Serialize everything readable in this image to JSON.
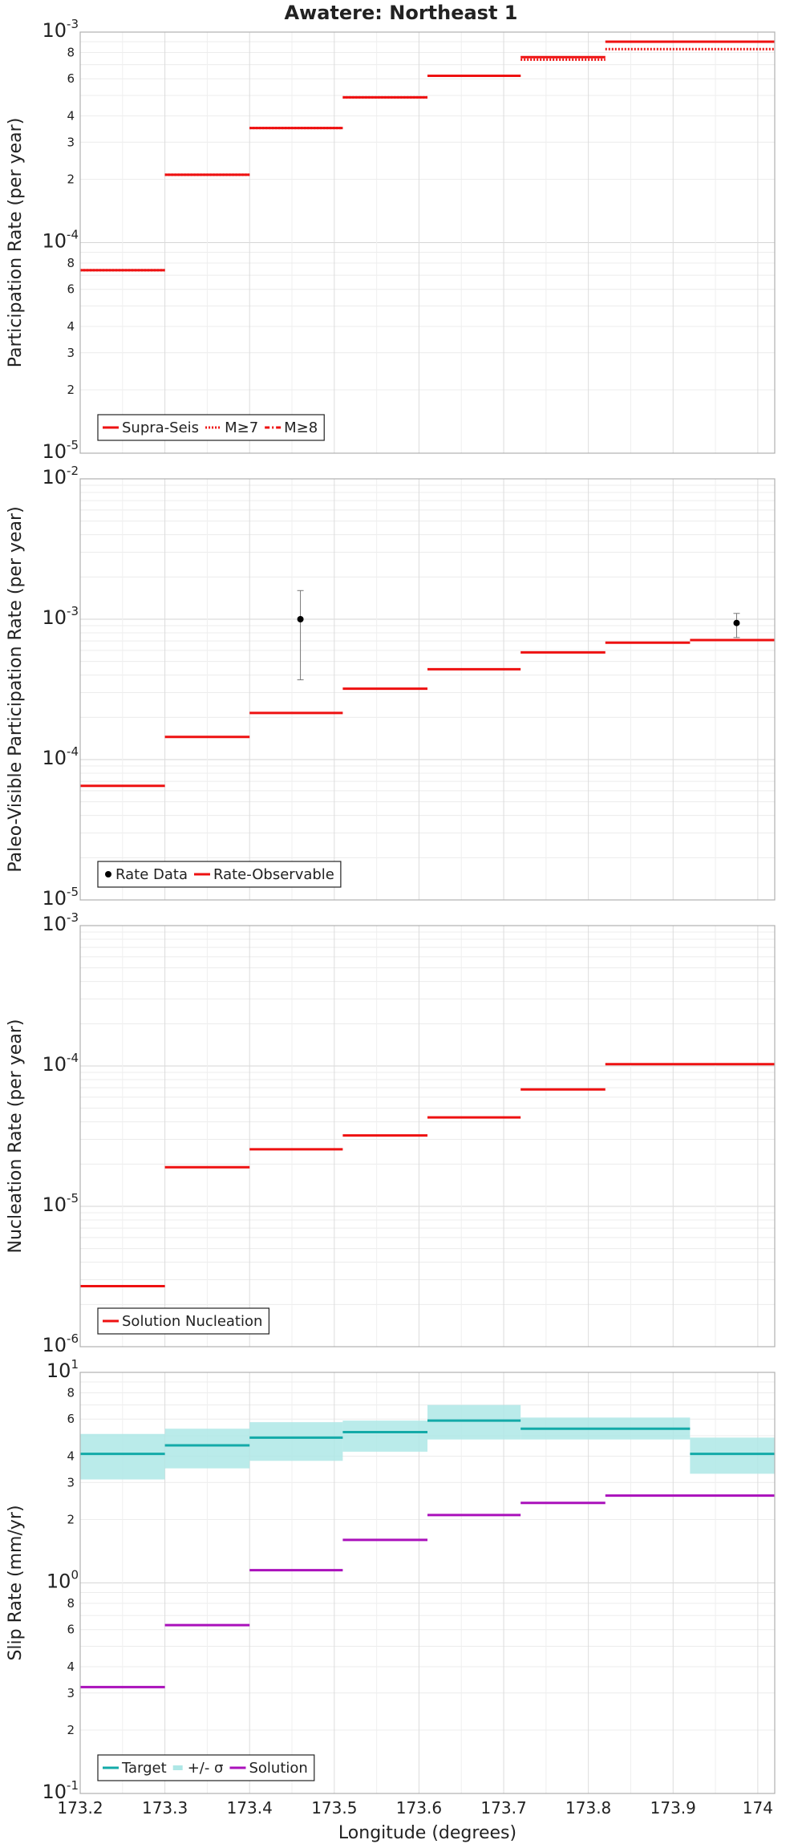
{
  "title": "Awatere: Northeast 1",
  "colors": {
    "red": "#ee1111",
    "teal": "#13aaa8",
    "teal_band": "#aee7e6",
    "magenta": "#aa11bb",
    "black": "#000000"
  },
  "chart_data": [
    {
      "type": "line",
      "title": "Awatere: Northeast 1",
      "ylabel": "Participation Rate (per year)",
      "xlabel": "",
      "y_scale": "log",
      "xlim": [
        173.2,
        174.02
      ],
      "ylim": [
        1e-05,
        0.001
      ],
      "grid": true,
      "legend_placement": "bottom-left",
      "x_tick_labels": [],
      "y_major_ticks": [
        {
          "value": 1e-05,
          "base": "10",
          "exp": "-5"
        },
        {
          "value": 0.0001,
          "base": "10",
          "exp": "-4"
        },
        {
          "value": 0.001,
          "base": "10",
          "exp": "-3"
        }
      ],
      "y_minor_labels": [
        "2",
        "3",
        "4",
        "6",
        "8"
      ],
      "legend": [
        {
          "label": "Supra-Seis",
          "style": "solid",
          "color": "#ee1111"
        },
        {
          "label": "M≥7",
          "style": "dotted",
          "color": "#ee1111"
        },
        {
          "label": "M≥8",
          "style": "dashdot",
          "color": "#ee1111"
        }
      ],
      "series": [
        {
          "name": "Supra-Seis",
          "style": "solid",
          "color": "#ee1111",
          "segments": [
            [
              173.2,
              173.3,
              7.4e-05
            ],
            [
              173.3,
              173.4,
              0.00021
            ],
            [
              173.4,
              173.51,
              0.00035
            ],
            [
              173.51,
              173.61,
              0.00049
            ],
            [
              173.61,
              173.72,
              0.00062
            ],
            [
              173.72,
              173.82,
              0.00076
            ],
            [
              173.82,
              174.02,
              0.0009
            ]
          ]
        },
        {
          "name": "M≥7",
          "style": "dotted",
          "color": "#ee1111",
          "segments": [
            [
              173.2,
              173.3,
              7.4e-05
            ],
            [
              173.3,
              173.4,
              0.00021
            ],
            [
              173.4,
              173.51,
              0.00035
            ],
            [
              173.51,
              173.61,
              0.00049
            ],
            [
              173.61,
              173.72,
              0.00062
            ],
            [
              173.72,
              173.82,
              0.00074
            ],
            [
              173.82,
              174.02,
              0.00083
            ]
          ]
        }
      ]
    },
    {
      "type": "line",
      "ylabel": "Paleo-Visible Participation Rate (per year)",
      "xlabel": "",
      "y_scale": "log",
      "xlim": [
        173.2,
        174.02
      ],
      "ylim": [
        1e-05,
        0.01
      ],
      "grid": true,
      "legend_placement": "bottom-left",
      "x_tick_labels": [],
      "y_major_ticks": [
        {
          "value": 1e-05,
          "base": "10",
          "exp": "-5"
        },
        {
          "value": 0.0001,
          "base": "10",
          "exp": "-4"
        },
        {
          "value": 0.001,
          "base": "10",
          "exp": "-3"
        },
        {
          "value": 0.01,
          "base": "10",
          "exp": "-2"
        }
      ],
      "y_minor_labels": [],
      "legend": [
        {
          "label": "Rate Data",
          "style": "point",
          "color": "#000000"
        },
        {
          "label": "Rate-Observable",
          "style": "solid",
          "color": "#ee1111"
        }
      ],
      "series": [
        {
          "name": "Rate-Observable",
          "style": "solid",
          "color": "#ee1111",
          "segments": [
            [
              173.2,
              173.3,
              6.5e-05
            ],
            [
              173.3,
              173.4,
              0.000145
            ],
            [
              173.4,
              173.51,
              0.000215
            ],
            [
              173.51,
              173.61,
              0.00032
            ],
            [
              173.61,
              173.72,
              0.00044
            ],
            [
              173.72,
              173.82,
              0.00058
            ],
            [
              173.82,
              173.92,
              0.00068
            ],
            [
              173.92,
              174.02,
              0.00071
            ]
          ]
        }
      ],
      "points": [
        {
          "x": 173.46,
          "y": 0.001,
          "low": 0.00037,
          "high": 0.0016
        },
        {
          "x": 173.975,
          "y": 0.00094,
          "low": 0.00074,
          "high": 0.0011
        }
      ]
    },
    {
      "type": "line",
      "ylabel": "Nucleation Rate (per year)",
      "xlabel": "",
      "y_scale": "log",
      "xlim": [
        173.2,
        174.02
      ],
      "ylim": [
        1e-06,
        0.001
      ],
      "grid": true,
      "legend_placement": "bottom-left",
      "x_tick_labels": [],
      "y_major_ticks": [
        {
          "value": 1e-06,
          "base": "10",
          "exp": "-6"
        },
        {
          "value": 1e-05,
          "base": "10",
          "exp": "-5"
        },
        {
          "value": 0.0001,
          "base": "10",
          "exp": "-4"
        },
        {
          "value": 0.001,
          "base": "10",
          "exp": "-3"
        }
      ],
      "y_minor_labels": [],
      "legend": [
        {
          "label": "Solution Nucleation",
          "style": "solid",
          "color": "#ee1111"
        }
      ],
      "series": [
        {
          "name": "Solution Nucleation",
          "style": "solid",
          "color": "#ee1111",
          "segments": [
            [
              173.2,
              173.3,
              2.7e-06
            ],
            [
              173.3,
              173.4,
              1.9e-05
            ],
            [
              173.4,
              173.51,
              2.55e-05
            ],
            [
              173.51,
              173.61,
              3.2e-05
            ],
            [
              173.61,
              173.72,
              4.3e-05
            ],
            [
              173.72,
              173.82,
              6.8e-05
            ],
            [
              173.82,
              174.02,
              0.000103
            ]
          ]
        }
      ]
    },
    {
      "type": "line",
      "ylabel": "Slip Rate (mm/yr)",
      "xlabel": "Longitude (degrees)",
      "y_scale": "log",
      "xlim": [
        173.2,
        174.02
      ],
      "ylim": [
        0.1,
        10
      ],
      "grid": true,
      "legend_placement": "bottom-left",
      "x_tick_labels": [
        "173.2",
        "173.3",
        "173.4",
        "173.5",
        "173.6",
        "173.7",
        "173.8",
        "173.9",
        "174"
      ],
      "y_major_ticks": [
        {
          "value": 0.1,
          "base": "10",
          "exp": "-1"
        },
        {
          "value": 1,
          "base": "10",
          "exp": "0"
        },
        {
          "value": 10,
          "base": "10",
          "exp": "1"
        }
      ],
      "y_minor_labels": [
        "2",
        "3",
        "4",
        "6",
        "8"
      ],
      "legend": [
        {
          "label": "Target",
          "style": "solid",
          "color": "#13aaa8"
        },
        {
          "label": "+/- σ",
          "style": "band",
          "color": "#aee7e6"
        },
        {
          "label": "Solution",
          "style": "solid",
          "color": "#aa11bb"
        }
      ],
      "bands": [
        {
          "name": "+/- σ",
          "color": "#aee7e6",
          "segments": [
            [
              173.2,
              173.3,
              3.1,
              5.1
            ],
            [
              173.3,
              173.4,
              3.5,
              5.4
            ],
            [
              173.4,
              173.51,
              3.8,
              5.8
            ],
            [
              173.51,
              173.61,
              4.2,
              5.9
            ],
            [
              173.61,
              173.72,
              4.8,
              7.0
            ],
            [
              173.72,
              173.92,
              4.8,
              6.1
            ],
            [
              173.92,
              174.02,
              3.3,
              4.9
            ]
          ]
        }
      ],
      "series": [
        {
          "name": "Target",
          "style": "solid",
          "color": "#13aaa8",
          "segments": [
            [
              173.2,
              173.3,
              4.1
            ],
            [
              173.3,
              173.4,
              4.5
            ],
            [
              173.4,
              173.51,
              4.9
            ],
            [
              173.51,
              173.61,
              5.2
            ],
            [
              173.61,
              173.72,
              5.9
            ],
            [
              173.72,
              173.92,
              5.4
            ],
            [
              173.92,
              174.02,
              4.1
            ]
          ]
        },
        {
          "name": "Solution",
          "style": "solid",
          "color": "#aa11bb",
          "segments": [
            [
              173.2,
              173.3,
              0.32
            ],
            [
              173.3,
              173.4,
              0.63
            ],
            [
              173.4,
              173.51,
              1.15
            ],
            [
              173.51,
              173.61,
              1.6
            ],
            [
              173.61,
              173.72,
              2.1
            ],
            [
              173.72,
              173.82,
              2.4
            ],
            [
              173.82,
              174.02,
              2.6
            ]
          ]
        }
      ]
    }
  ]
}
